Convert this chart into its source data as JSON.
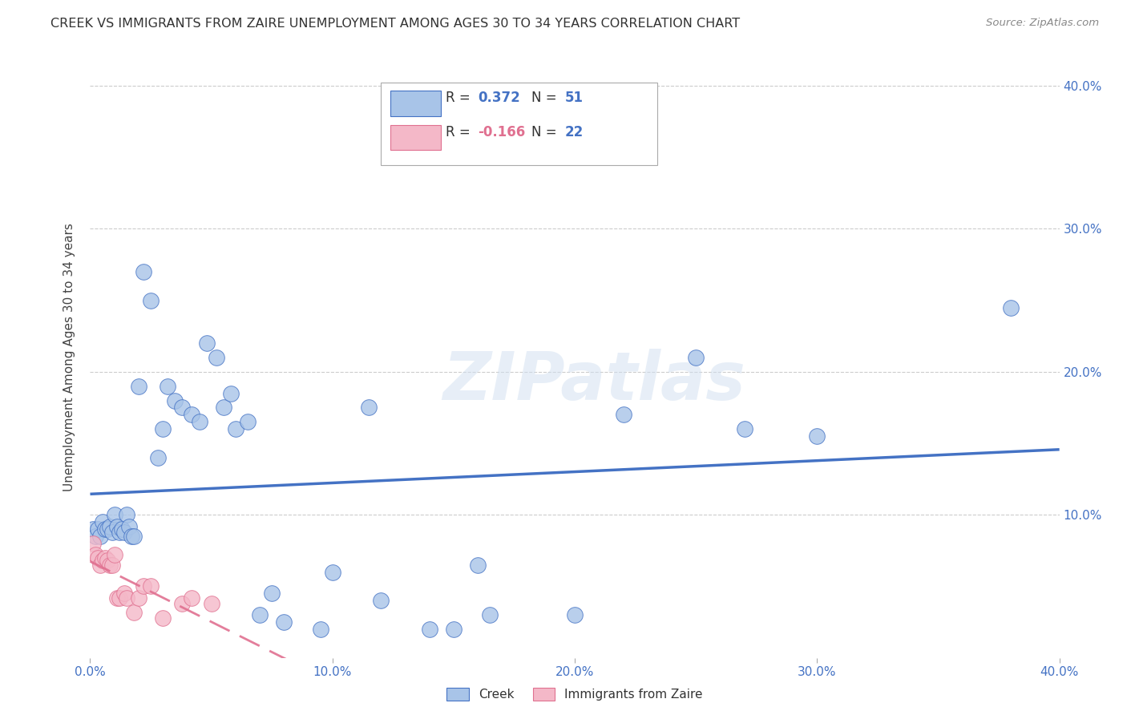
{
  "title": "CREEK VS IMMIGRANTS FROM ZAIRE UNEMPLOYMENT AMONG AGES 30 TO 34 YEARS CORRELATION CHART",
  "source": "Source: ZipAtlas.com",
  "ylabel": "Unemployment Among Ages 30 to 34 years",
  "xlim": [
    0.0,
    0.4
  ],
  "ylim": [
    0.0,
    0.42
  ],
  "xticks": [
    0.0,
    0.1,
    0.2,
    0.3,
    0.4
  ],
  "yticks": [
    0.1,
    0.2,
    0.3,
    0.4
  ],
  "xticklabels": [
    "0.0%",
    "10.0%",
    "20.0%",
    "30.0%",
    "40.0%"
  ],
  "yticklabels_right": [
    "10.0%",
    "20.0%",
    "30.0%",
    "40.0%"
  ],
  "creek_color": "#a8c4e8",
  "zaire_color": "#f4b8c8",
  "creek_line_color": "#4472c4",
  "zaire_line_color": "#e07090",
  "creek_x": [
    0.001,
    0.002,
    0.003,
    0.004,
    0.005,
    0.006,
    0.007,
    0.008,
    0.009,
    0.01,
    0.011,
    0.012,
    0.013,
    0.014,
    0.015,
    0.016,
    0.017,
    0.018,
    0.02,
    0.022,
    0.025,
    0.028,
    0.03,
    0.032,
    0.035,
    0.038,
    0.042,
    0.045,
    0.048,
    0.052,
    0.055,
    0.058,
    0.06,
    0.065,
    0.07,
    0.075,
    0.08,
    0.095,
    0.1,
    0.115,
    0.12,
    0.14,
    0.15,
    0.16,
    0.165,
    0.2,
    0.22,
    0.25,
    0.27,
    0.3,
    0.38
  ],
  "creek_y": [
    0.09,
    0.085,
    0.09,
    0.085,
    0.095,
    0.09,
    0.09,
    0.092,
    0.088,
    0.1,
    0.092,
    0.088,
    0.09,
    0.088,
    0.1,
    0.092,
    0.085,
    0.085,
    0.19,
    0.27,
    0.25,
    0.14,
    0.16,
    0.19,
    0.18,
    0.175,
    0.17,
    0.165,
    0.22,
    0.21,
    0.175,
    0.185,
    0.16,
    0.165,
    0.03,
    0.045,
    0.025,
    0.02,
    0.06,
    0.175,
    0.04,
    0.02,
    0.02,
    0.065,
    0.03,
    0.03,
    0.17,
    0.21,
    0.16,
    0.155,
    0.245
  ],
  "zaire_x": [
    0.001,
    0.002,
    0.003,
    0.004,
    0.005,
    0.006,
    0.007,
    0.008,
    0.009,
    0.01,
    0.011,
    0.012,
    0.014,
    0.015,
    0.018,
    0.02,
    0.022,
    0.025,
    0.03,
    0.038,
    0.042,
    0.05
  ],
  "zaire_y": [
    0.08,
    0.072,
    0.07,
    0.065,
    0.068,
    0.07,
    0.068,
    0.065,
    0.065,
    0.072,
    0.042,
    0.042,
    0.045,
    0.042,
    0.032,
    0.042,
    0.05,
    0.05,
    0.028,
    0.038,
    0.042,
    0.038
  ],
  "watermark": "ZIPatlas",
  "background_color": "#ffffff",
  "grid_color": "#cccccc",
  "title_color": "#333333"
}
